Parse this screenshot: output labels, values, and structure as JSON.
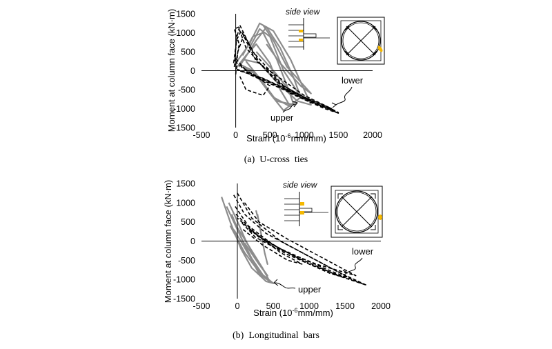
{
  "colors": {
    "lower_series": "#000000",
    "upper_series": "#8c8c8c",
    "strain_gauge": "#f5b800"
  },
  "icons": [
    "cross-section-diagram-icon",
    "side-view-diagram-icon",
    "strain-gauge-marker-icon"
  ],
  "chart_data": [
    {
      "type": "line",
      "caption": "(a)  U-cross  ties",
      "ylabel": "Moment at column face  (kN·m)",
      "xlabel_prefix": "Strain (10",
      "xlabel_sup": "-6",
      "xlabel_suffix": "mm/mm)",
      "xlim": [
        -500,
        2000
      ],
      "ylim": [
        -1500,
        1500
      ],
      "xticks": [
        -500,
        0,
        500,
        1000,
        1500,
        2000
      ],
      "yticks": [
        -1500,
        -1000,
        -500,
        0,
        500,
        1000,
        1500
      ],
      "grid": false,
      "legend": "none",
      "inset_title": "side view",
      "annotations": [
        {
          "text": "lower",
          "x": 1530,
          "y": -120
        },
        {
          "text": "upper",
          "x": 680,
          "y": -1300
        }
      ],
      "series": [
        {
          "label": "lower",
          "style": "dashed",
          "values": [
            [
              [
                0,
                150
              ],
              [
                50,
                700
              ],
              [
                -20,
                1100
              ],
              [
                40,
                1150
              ],
              [
                150,
                600
              ],
              [
                600,
                -300
              ],
              [
                1100,
                -800
              ],
              [
                1500,
                -1100
              ],
              [
                1200,
                -900
              ],
              [
                700,
                -500
              ],
              [
                200,
                -100
              ],
              [
                10,
                300
              ]
            ],
            [
              [
                -30,
                200
              ],
              [
                20,
                900
              ],
              [
                60,
                1200
              ],
              [
                250,
                500
              ],
              [
                700,
                -400
              ],
              [
                1200,
                -900
              ],
              [
                1450,
                -1050
              ],
              [
                1000,
                -700
              ],
              [
                400,
                -200
              ],
              [
                50,
                0
              ]
            ],
            [
              [
                0,
                -100
              ],
              [
                30,
                500
              ],
              [
                120,
                950
              ],
              [
                350,
                200
              ],
              [
                800,
                -600
              ],
              [
                1300,
                -1000
              ],
              [
                1500,
                -1120
              ],
              [
                900,
                -650
              ],
              [
                300,
                -150
              ],
              [
                0,
                50
              ]
            ],
            [
              [
                -20,
                100
              ],
              [
                10,
                800
              ],
              [
                80,
                1050
              ],
              [
                300,
                250
              ],
              [
                650,
                -200
              ],
              [
                1000,
                -650
              ],
              [
                1400,
                -1000
              ],
              [
                750,
                -500
              ],
              [
                200,
                -50
              ],
              [
                20,
                200
              ]
            ],
            [
              [
                60,
                -150
              ],
              [
                150,
                -500
              ],
              [
                400,
                -650
              ],
              [
                500,
                -400
              ],
              [
                250,
                -100
              ],
              [
                80,
                100
              ]
            ]
          ]
        },
        {
          "label": "upper",
          "style": "solid",
          "values": [
            [
              [
                0,
                200
              ],
              [
                200,
                700
              ],
              [
                350,
                1250
              ],
              [
                550,
                1050
              ],
              [
                800,
                300
              ],
              [
                1000,
                -500
              ],
              [
                1100,
                -900
              ],
              [
                900,
                -800
              ],
              [
                600,
                -300
              ],
              [
                350,
                200
              ],
              [
                100,
                300
              ]
            ],
            [
              [
                50,
                100
              ],
              [
                300,
                800
              ],
              [
                450,
                1150
              ],
              [
                650,
                600
              ],
              [
                850,
                -200
              ],
              [
                950,
                -700
              ],
              [
                700,
                -1050
              ],
              [
                500,
                -600
              ],
              [
                250,
                0
              ],
              [
                80,
                150
              ]
            ],
            [
              [
                100,
                400
              ],
              [
                250,
                900
              ],
              [
                400,
                1000
              ],
              [
                600,
                300
              ],
              [
                750,
                -400
              ],
              [
                850,
                -900
              ],
              [
                600,
                -800
              ],
              [
                350,
                -200
              ],
              [
                150,
                250
              ]
            ],
            [
              [
                200,
                600
              ],
              [
                350,
                1100
              ],
              [
                500,
                900
              ],
              [
                700,
                0
              ],
              [
                900,
                -550
              ],
              [
                1050,
                -800
              ],
              [
                800,
                -550
              ],
              [
                550,
                0
              ],
              [
                300,
                500
              ]
            ],
            [
              [
                0,
                50
              ],
              [
                150,
                400
              ],
              [
                300,
                700
              ],
              [
                500,
                200
              ],
              [
                650,
                -500
              ],
              [
                800,
                -950
              ],
              [
                550,
                -700
              ],
              [
                300,
                -100
              ],
              [
                100,
                100
              ]
            ],
            [
              [
                400,
                1200
              ],
              [
                550,
                800
              ],
              [
                750,
                100
              ],
              [
                950,
                -300
              ],
              [
                1100,
                -600
              ],
              [
                950,
                -400
              ],
              [
                650,
                200
              ],
              [
                450,
                700
              ]
            ]
          ]
        }
      ]
    },
    {
      "type": "line",
      "caption": "(b)  Longitudinal  bars",
      "ylabel": "Moment at column face  (kN·m)",
      "xlabel_prefix": "Strain (10",
      "xlabel_sup": "-6",
      "xlabel_suffix": "mm/mm)",
      "xlim": [
        -500,
        2000
      ],
      "ylim": [
        -1500,
        1500
      ],
      "xticks": [
        -500,
        0,
        500,
        1000,
        1500,
        2000
      ],
      "yticks": [
        -1500,
        -1000,
        -500,
        0,
        500,
        1000,
        1500
      ],
      "grid": false,
      "legend": "none",
      "inset_title": "side view",
      "annotations": [
        {
          "text": "lower",
          "x": 1570,
          "y": -120
        },
        {
          "text": "upper",
          "x": 700,
          "y": -1300
        }
      ],
      "series": [
        {
          "label": "lower",
          "style": "dashed",
          "values": [
            [
              [
                -50,
                1200
              ],
              [
                100,
                700
              ],
              [
                400,
                200
              ],
              [
                900,
                -300
              ],
              [
                1400,
                -800
              ],
              [
                1800,
                -1150
              ],
              [
                1400,
                -900
              ],
              [
                800,
                -400
              ],
              [
                300,
                100
              ],
              [
                0,
                600
              ]
            ],
            [
              [
                0,
                1250
              ],
              [
                200,
                600
              ],
              [
                600,
                0
              ],
              [
                1100,
                -500
              ],
              [
                1600,
                -1000
              ],
              [
                1750,
                -1120
              ],
              [
                1200,
                -700
              ],
              [
                600,
                -200
              ],
              [
                150,
                300
              ]
            ],
            [
              [
                -30,
                900
              ],
              [
                150,
                400
              ],
              [
                500,
                -100
              ],
              [
                1000,
                -600
              ],
              [
                1500,
                -950
              ],
              [
                1300,
                -850
              ],
              [
                700,
                -350
              ],
              [
                250,
                100
              ],
              [
                50,
                500
              ]
            ],
            [
              [
                100,
                1000
              ],
              [
                300,
                500
              ],
              [
                700,
                50
              ],
              [
                1200,
                -450
              ],
              [
                1650,
                -900
              ],
              [
                1100,
                -600
              ],
              [
                500,
                -150
              ],
              [
                150,
                350
              ]
            ],
            [
              [
                -20,
                700
              ],
              [
                250,
                200
              ],
              [
                600,
                -300
              ],
              [
                900,
                -600
              ],
              [
                700,
                -500
              ],
              [
                350,
                -100
              ],
              [
                80,
                300
              ]
            ]
          ]
        },
        {
          "label": "upper",
          "style": "solid",
          "values": [
            [
              [
                -220,
                1150
              ],
              [
                -100,
                500
              ],
              [
                50,
                -200
              ],
              [
                200,
                -700
              ],
              [
                400,
                -1050
              ],
              [
                500,
                -1100
              ],
              [
                300,
                -800
              ],
              [
                100,
                -300
              ],
              [
                -100,
                400
              ]
            ],
            [
              [
                -150,
                900
              ],
              [
                0,
                300
              ],
              [
                150,
                -300
              ],
              [
                300,
                -850
              ],
              [
                450,
                -1050
              ],
              [
                350,
                -700
              ],
              [
                150,
                -100
              ],
              [
                -50,
                500
              ]
            ],
            [
              [
                -80,
                700
              ],
              [
                50,
                100
              ],
              [
                200,
                -450
              ],
              [
                380,
                -950
              ],
              [
                250,
                -650
              ],
              [
                80,
                -100
              ],
              [
                -50,
                300
              ]
            ],
            [
              [
                260,
                800
              ],
              [
                300,
                500
              ],
              [
                340,
                100
              ],
              [
                380,
                -300
              ],
              [
                420,
                -600
              ],
              [
                380,
                -300
              ],
              [
                330,
                200
              ],
              [
                280,
                700
              ]
            ],
            [
              [
                -120,
                1000
              ],
              [
                -20,
                600
              ],
              [
                120,
                0
              ],
              [
                270,
                -500
              ],
              [
                420,
                -900
              ],
              [
                300,
                -600
              ],
              [
                100,
                -50
              ]
            ]
          ]
        }
      ]
    }
  ]
}
